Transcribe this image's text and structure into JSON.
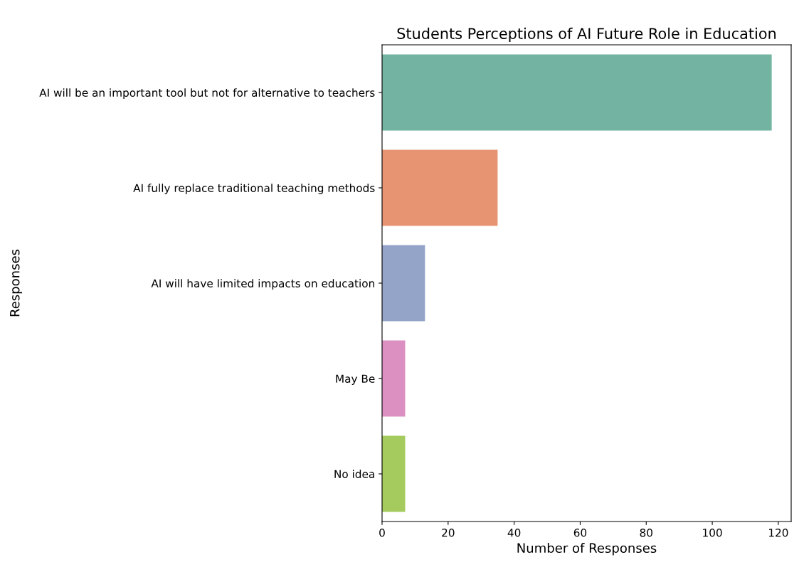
{
  "chart_data": {
    "type": "bar",
    "orientation": "horizontal",
    "title": "Students Perceptions of AI Future Role in Education",
    "xlabel": "Number of Responses",
    "ylabel": "Responses",
    "categories": [
      "AI will be an important tool but not for alternative to teachers",
      "AI fully replace traditional teaching methods",
      "AI will have limited impacts on education",
      "May Be",
      "No idea"
    ],
    "values": [
      118,
      35,
      13,
      7,
      7
    ],
    "colors": [
      "#72b3a1",
      "#e79472",
      "#94a3c8",
      "#dc8fc1",
      "#a5cb5e"
    ],
    "xlim": [
      0,
      123.9
    ],
    "xticks": [
      0,
      20,
      40,
      60,
      80,
      100,
      120
    ],
    "grid": false,
    "legend": false
  }
}
